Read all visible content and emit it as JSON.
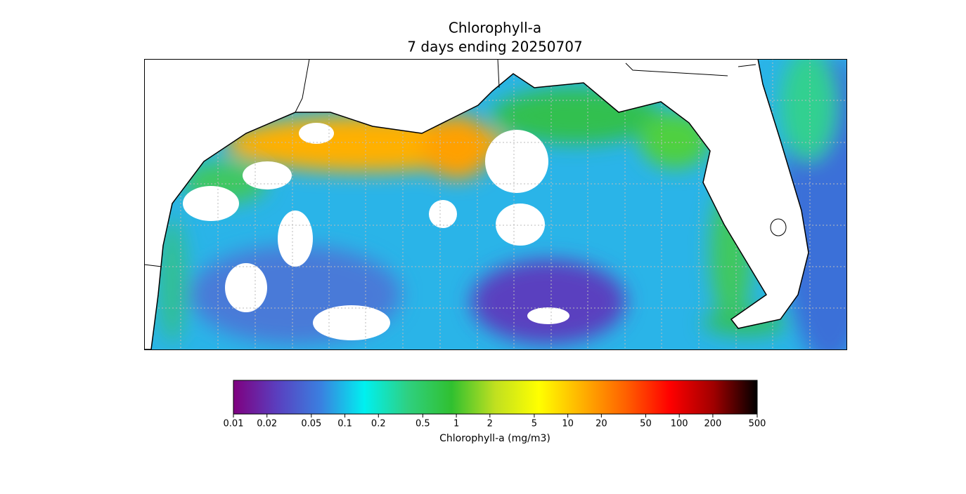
{
  "title": "Chlorophyll-a",
  "subtitle": "7 days ending 20250707",
  "colorbar": {
    "label": "Chlorophyll-a (mg/m3)",
    "scale": "log",
    "lim": [
      0.01,
      500
    ],
    "ticks": [
      0.01,
      0.02,
      0.05,
      0.1,
      0.2,
      0.5,
      1,
      2,
      5,
      10,
      20,
      50,
      100,
      200,
      500
    ],
    "colormap": [
      "#7f007f",
      "#5a3fbf",
      "#3a80e0",
      "#00f0f0",
      "#2fd080",
      "#30c030",
      "#c0e020",
      "#ffff00",
      "#ffb000",
      "#ff6000",
      "#ff0000",
      "#a00000",
      "#000000"
    ]
  }
}
